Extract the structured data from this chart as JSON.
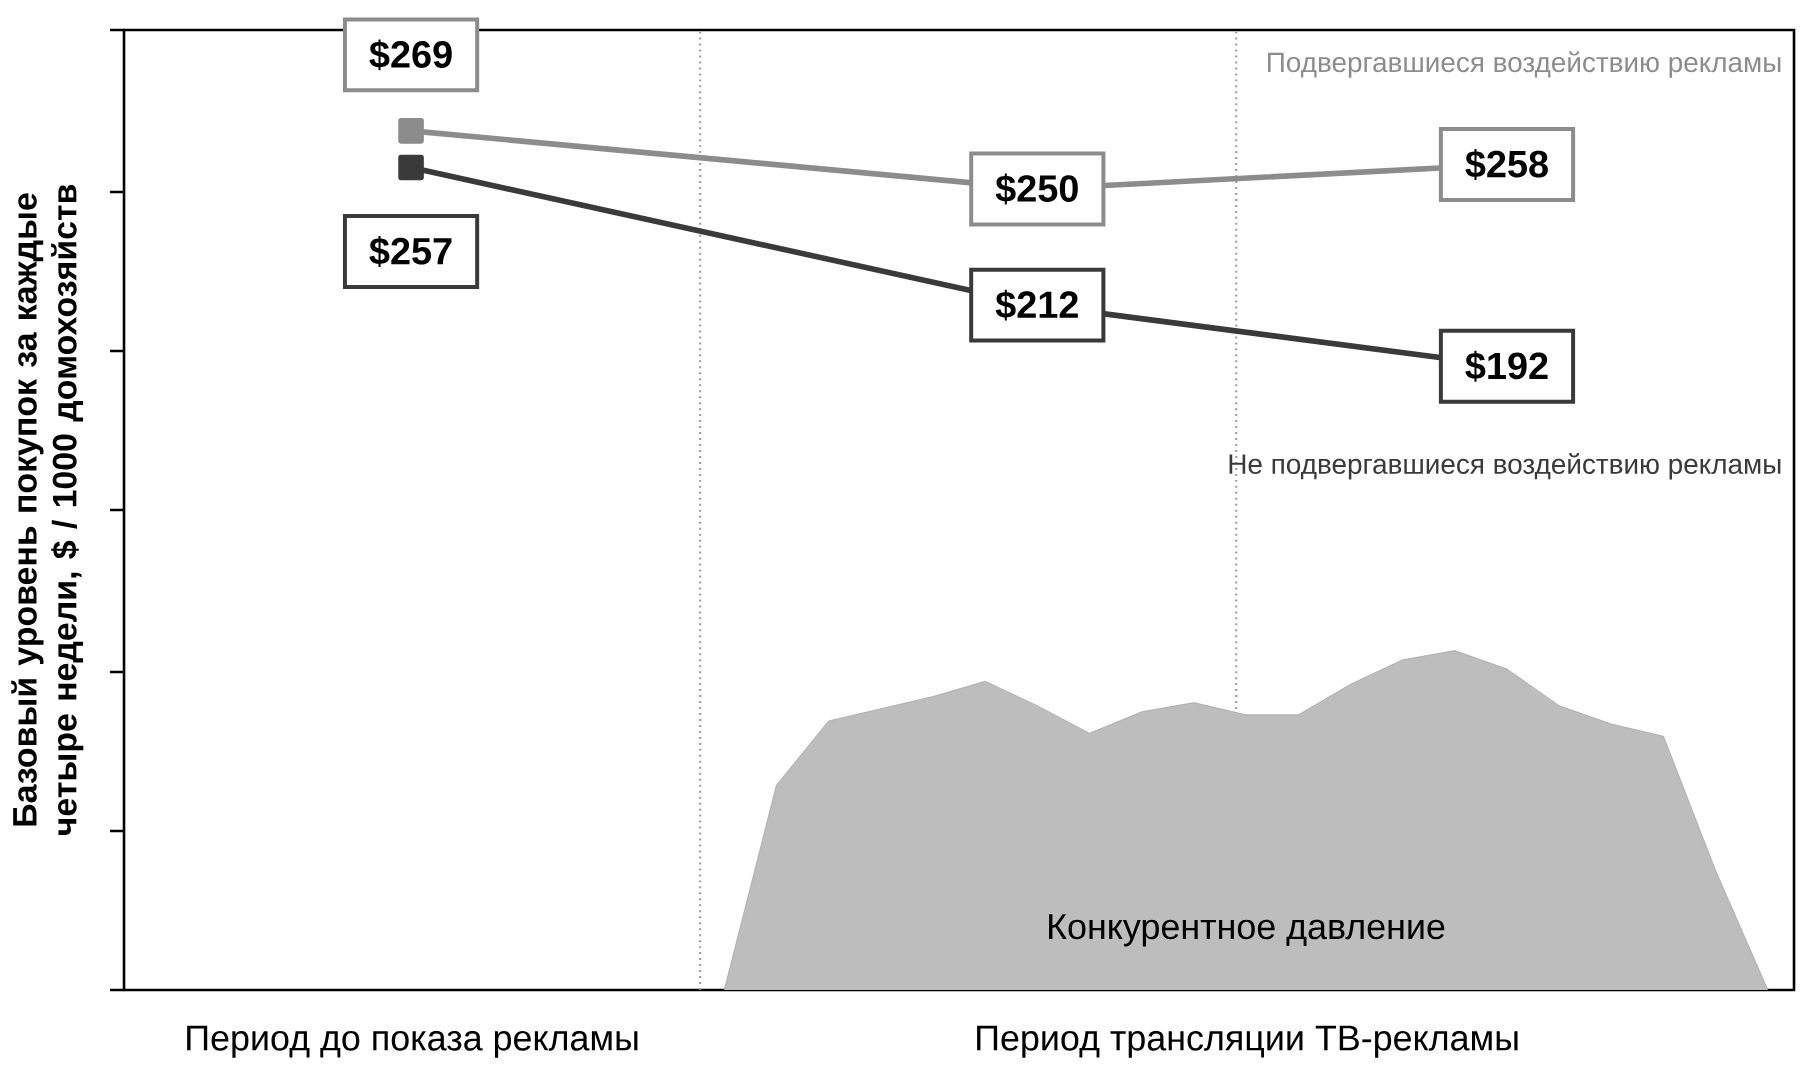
{
  "chart_data": {
    "type": "line",
    "ylabel": "Базовый уровень покупок за каждые четыре недели, $ / 1000 домохозяйств",
    "categories": [
      null,
      null,
      null,
      null,
      null,
      null,
      null,
      null,
      null,
      null,
      null,
      null,
      null,
      null,
      null,
      null,
      null,
      null,
      null,
      null,
      null,
      null,
      null,
      null,
      null,
      null,
      null,
      null,
      null,
      null,
      null,
      null
    ],
    "annotations": [
      "Период до показа рекламы",
      "Период трансляции ТВ-рекламы"
    ],
    "ylim": [
      -12,
      302
    ],
    "yticks": [
      {
        "value": -12,
        "label": null
      },
      {
        "value": 40,
        "label": null
      },
      {
        "value": 92,
        "label": null
      },
      {
        "value": 145,
        "label": null
      },
      {
        "value": 197,
        "label": null
      },
      {
        "value": 249,
        "label": null
      },
      {
        "value": 302,
        "label": null
      }
    ],
    "series": [
      {
        "name": "Подвергавшиеся воздействию рекламы",
        "color": "#8c8c8c",
        "marker": "square",
        "values": [
          null,
          null,
          null,
          null,
          null,
          269,
          null,
          null,
          null,
          null,
          null,
          null,
          null,
          null,
          null,
          null,
          null,
          250,
          null,
          null,
          null,
          null,
          null,
          null,
          null,
          null,
          258,
          null,
          null,
          null,
          null,
          null
        ],
        "value_labels": [
          null,
          null,
          null,
          null,
          null,
          "$269",
          null,
          null,
          null,
          null,
          null,
          null,
          null,
          null,
          null,
          null,
          null,
          "$250",
          null,
          null,
          null,
          null,
          null,
          null,
          null,
          null,
          "$258",
          null,
          null,
          null,
          null,
          null
        ]
      },
      {
        "name": "Не подвергавшиеся воздействию рекламы",
        "color": "#3a3a3a",
        "marker": "square",
        "values": [
          null,
          null,
          null,
          null,
          null,
          257,
          null,
          null,
          null,
          null,
          null,
          null,
          null,
          null,
          null,
          null,
          null,
          212,
          null,
          null,
          null,
          null,
          null,
          null,
          null,
          null,
          192,
          null,
          null,
          null,
          null,
          null
        ],
        "value_labels": [
          null,
          null,
          null,
          null,
          null,
          "$257",
          null,
          null,
          null,
          null,
          null,
          null,
          null,
          null,
          null,
          null,
          null,
          "$212",
          null,
          null,
          null,
          null,
          null,
          null,
          null,
          null,
          "$192",
          null,
          null,
          null,
          null,
          null
        ]
      },
      {
        "name": "Конкурентное давление",
        "type": "area",
        "color": "#bdbdbd",
        "values": [
          null,
          null,
          null,
          null,
          null,
          null,
          null,
          null,
          null,
          null,
          null,
          -12,
          55,
          76,
          80,
          84,
          89,
          81,
          72,
          79,
          82,
          78,
          78,
          88,
          96,
          99,
          93,
          81,
          75,
          71,
          27,
          -12
        ]
      }
    ]
  }
}
